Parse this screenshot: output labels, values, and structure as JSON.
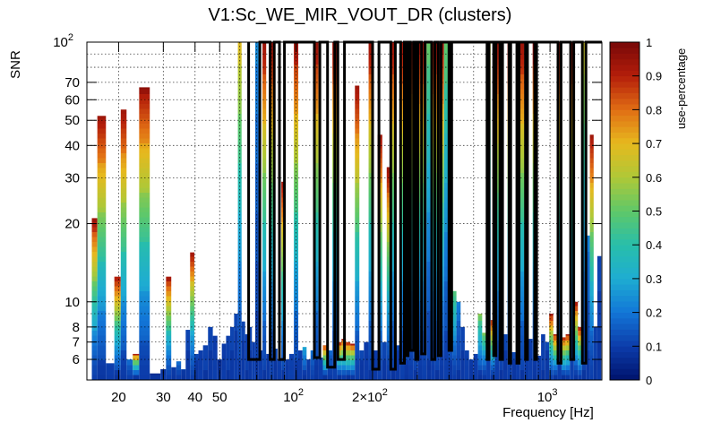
{
  "chart_data": {
    "type": "heatmap",
    "title": "V1:Sc_WE_MIR_VOUT_DR (clusters)",
    "xlabel": "Frequency [Hz]",
    "ylabel": "SNR",
    "zlabel": "use-percentage",
    "x_scale": "log",
    "y_scale": "log",
    "xlim": [
      15,
      1600
    ],
    "ylim": [
      5,
      100
    ],
    "zlim": [
      0,
      1
    ],
    "grid": true,
    "x_ticks": [
      {
        "value": 20,
        "label": "20"
      },
      {
        "value": 30,
        "label": "30"
      },
      {
        "value": 40,
        "label": "40"
      },
      {
        "value": 50,
        "label": "50"
      },
      {
        "value": 100,
        "label": "10",
        "exp": "2"
      },
      {
        "value": 200,
        "label": "2×10",
        "exp": "2"
      },
      {
        "value": 1000,
        "label": "10",
        "exp": "3"
      }
    ],
    "x_minor_ticks": [
      60,
      70,
      80,
      90,
      300,
      400,
      500,
      600,
      700,
      800,
      900
    ],
    "y_ticks": [
      {
        "value": 6,
        "label": "6"
      },
      {
        "value": 7,
        "label": "7"
      },
      {
        "value": 8,
        "label": "8"
      },
      {
        "value": 10,
        "label": "10"
      },
      {
        "value": 20,
        "label": "20"
      },
      {
        "value": 30,
        "label": "30"
      },
      {
        "value": 40,
        "label": "40"
      },
      {
        "value": 50,
        "label": "50"
      },
      {
        "value": 60,
        "label": "60"
      },
      {
        "value": 70,
        "label": "70"
      },
      {
        "value": 100,
        "label": "10",
        "exp": "2"
      }
    ],
    "colorbar_ticks": [
      0,
      0.1,
      0.2,
      0.3,
      0.4,
      0.5,
      0.6,
      0.7,
      0.8,
      0.9,
      1
    ],
    "colorbar_tick_labels": [
      "0",
      "0.1",
      "0.2",
      "0.3",
      "0.4",
      "0.5",
      "0.6",
      "0.7",
      "0.8",
      "0.9",
      "1"
    ],
    "columns": [
      {
        "f": 16.0,
        "top": 21,
        "tv": 0.95
      },
      {
        "f": 17.0,
        "top": 52,
        "tv": 0.95
      },
      {
        "f": 18.7,
        "top": 5.8,
        "tv": 0.1
      },
      {
        "f": 19.8,
        "top": 12.5,
        "tv": 0.95
      },
      {
        "f": 21.0,
        "top": 55,
        "tv": 0.95
      },
      {
        "f": 22.0,
        "top": 6.0,
        "tv": 0.2
      },
      {
        "f": 23.5,
        "top": 6.3,
        "tv": 0.95
      },
      {
        "f": 24.7,
        "top": 67,
        "tv": 0.95
      },
      {
        "f": 28.5,
        "top": 5.3,
        "tv": 0.05
      },
      {
        "f": 30.0,
        "top": 5.5,
        "tv": 0.05
      },
      {
        "f": 31.5,
        "top": 12.5,
        "tv": 0.95
      },
      {
        "f": 33.0,
        "top": 5.6,
        "tv": 0.1
      },
      {
        "f": 34.5,
        "top": 5.9,
        "tv": 0.2
      },
      {
        "f": 36.0,
        "top": 5.5,
        "tv": 0.1
      },
      {
        "f": 37.5,
        "top": 7.8,
        "tv": 0.1
      },
      {
        "f": 39.0,
        "top": 15.5,
        "tv": 0.95
      },
      {
        "f": 40.5,
        "top": 6.3,
        "tv": 0.1
      },
      {
        "f": 42.0,
        "top": 6.5,
        "tv": 0.1
      },
      {
        "f": 44.0,
        "top": 6.8,
        "tv": 0.1
      },
      {
        "f": 46.0,
        "top": 8.0,
        "tv": 0.1
      },
      {
        "f": 48.0,
        "top": 7.4,
        "tv": 0.1
      },
      {
        "f": 50.0,
        "top": 6.0,
        "tv": 0.05
      },
      {
        "f": 52.0,
        "top": 6.9,
        "tv": 0.1
      },
      {
        "f": 54.0,
        "top": 7.4,
        "tv": 0.1
      },
      {
        "f": 56.0,
        "top": 8.0,
        "tv": 0.1
      },
      {
        "f": 58.0,
        "top": 9.0,
        "tv": 0.1
      },
      {
        "f": 60.0,
        "top": 100,
        "tv": 0.68
      },
      {
        "f": 62.0,
        "top": 8.4,
        "tv": 0.1
      },
      {
        "f": 64.0,
        "top": 7.5,
        "tv": 0.1
      },
      {
        "f": 66.0,
        "top": 8.0,
        "tv": 0.1
      },
      {
        "f": 68.0,
        "top": 7.0,
        "tv": 0.1
      },
      {
        "f": 70.0,
        "top": 100,
        "tv": 0.22
      },
      {
        "f": 72.5,
        "top": 6.5,
        "tv": 0.1
      },
      {
        "f": 75.0,
        "top": 100,
        "tv": 0.95
      },
      {
        "f": 77.5,
        "top": 6.3,
        "tv": 0.1
      },
      {
        "f": 80.0,
        "top": 100,
        "tv": 0.95
      },
      {
        "f": 83.0,
        "top": 6.6,
        "tv": 0.1
      },
      {
        "f": 86.0,
        "top": 6.0,
        "tv": 0.1
      },
      {
        "f": 89.0,
        "top": 29,
        "tv": 0.95
      },
      {
        "f": 92.0,
        "top": 6.0,
        "tv": 0.1
      },
      {
        "f": 96.0,
        "top": 6.3,
        "tv": 0.1
      },
      {
        "f": 100,
        "top": 100,
        "tv": 0.95
      },
      {
        "f": 104,
        "top": 6.5,
        "tv": 0.1
      },
      {
        "f": 108,
        "top": 6.7,
        "tv": 0.3
      },
      {
        "f": 112,
        "top": 6.0,
        "tv": 0.1
      },
      {
        "f": 116,
        "top": 6.5,
        "tv": 0.2
      },
      {
        "f": 120,
        "top": 100,
        "tv": 0.95
      },
      {
        "f": 125,
        "top": 6.1,
        "tv": 0.1
      },
      {
        "f": 130,
        "top": 6.8,
        "tv": 0.95
      },
      {
        "f": 136,
        "top": 6.5,
        "tv": 0.2
      },
      {
        "f": 142,
        "top": 100,
        "tv": 0.95
      },
      {
        "f": 148,
        "top": 7.0,
        "tv": 0.95
      },
      {
        "f": 154,
        "top": 7.2,
        "tv": 0.95
      },
      {
        "f": 160,
        "top": 7.0,
        "tv": 0.95
      },
      {
        "f": 167,
        "top": 6.9,
        "tv": 0.95
      },
      {
        "f": 174,
        "top": 68,
        "tv": 0.95
      },
      {
        "f": 181,
        "top": 6.5,
        "tv": 0.1
      },
      {
        "f": 189,
        "top": 7.0,
        "tv": 0.1
      },
      {
        "f": 197,
        "top": 100,
        "tv": 0.95
      },
      {
        "f": 205,
        "top": 6.5,
        "tv": 0.1
      },
      {
        "f": 214,
        "top": 44,
        "tv": 0.95
      },
      {
        "f": 223,
        "top": 7.0,
        "tv": 0.1
      },
      {
        "f": 232,
        "top": 33,
        "tv": 0.95
      },
      {
        "f": 242,
        "top": 100,
        "tv": 0.95
      },
      {
        "f": 252,
        "top": 6.8,
        "tv": 0.1
      },
      {
        "f": 262,
        "top": 100,
        "tv": 0.95
      },
      {
        "f": 272,
        "top": 100,
        "tv": 0.95
      },
      {
        "f": 284,
        "top": 100,
        "tv": 0.95
      },
      {
        "f": 296,
        "top": 100,
        "tv": 0.95
      },
      {
        "f": 308,
        "top": 100,
        "tv": 0.95
      },
      {
        "f": 320,
        "top": 100,
        "tv": 0.95
      },
      {
        "f": 333,
        "top": 100,
        "tv": 0.5
      },
      {
        "f": 346,
        "top": 100,
        "tv": 0.95
      },
      {
        "f": 360,
        "top": 100,
        "tv": 0.95
      },
      {
        "f": 375,
        "top": 100,
        "tv": 0.95
      },
      {
        "f": 390,
        "top": 100,
        "tv": 0.5
      },
      {
        "f": 405,
        "top": 100,
        "tv": 0.95
      },
      {
        "f": 420,
        "top": 11,
        "tv": 0.5
      },
      {
        "f": 436,
        "top": 10,
        "tv": 0.2
      },
      {
        "f": 453,
        "top": 8.0,
        "tv": 0.1
      },
      {
        "f": 470,
        "top": 6.5,
        "tv": 0.1
      },
      {
        "f": 490,
        "top": 6.0,
        "tv": 0.1
      },
      {
        "f": 510,
        "top": 6.3,
        "tv": 0.1
      },
      {
        "f": 530,
        "top": 9.0,
        "tv": 0.55
      },
      {
        "f": 551,
        "top": 7.6,
        "tv": 0.55
      },
      {
        "f": 572,
        "top": 100,
        "tv": 0.65
      },
      {
        "f": 595,
        "top": 8.5,
        "tv": 0.95
      },
      {
        "f": 618,
        "top": 100,
        "tv": 0.95
      },
      {
        "f": 642,
        "top": 100,
        "tv": 0.6
      },
      {
        "f": 667,
        "top": 7.5,
        "tv": 0.1
      },
      {
        "f": 693,
        "top": 100,
        "tv": 0.95
      },
      {
        "f": 720,
        "top": 6.4,
        "tv": 0.1
      },
      {
        "f": 748,
        "top": 100,
        "tv": 0.95
      },
      {
        "f": 777,
        "top": 100,
        "tv": 0.95
      },
      {
        "f": 807,
        "top": 100,
        "tv": 0.95
      },
      {
        "f": 838,
        "top": 7.2,
        "tv": 0.1
      },
      {
        "f": 870,
        "top": 100,
        "tv": 0.95
      },
      {
        "f": 904,
        "top": 6.2,
        "tv": 0.1
      },
      {
        "f": 940,
        "top": 7.5,
        "tv": 0.1
      },
      {
        "f": 975,
        "top": 7.0,
        "tv": 0.1
      },
      {
        "f": 1010,
        "top": 9.0,
        "tv": 0.95
      },
      {
        "f": 1050,
        "top": 7.5,
        "tv": 0.95
      },
      {
        "f": 1090,
        "top": 100,
        "tv": 0.95
      },
      {
        "f": 1130,
        "top": 7.3,
        "tv": 0.95
      },
      {
        "f": 1175,
        "top": 7.5,
        "tv": 0.95
      },
      {
        "f": 1220,
        "top": 100,
        "tv": 0.95
      },
      {
        "f": 1265,
        "top": 10,
        "tv": 0.95
      },
      {
        "f": 1310,
        "top": 8.0,
        "tv": 0.95
      },
      {
        "f": 1360,
        "top": 100,
        "tv": 0.65
      },
      {
        "f": 1410,
        "top": 18,
        "tv": 0.2
      },
      {
        "f": 1460,
        "top": 44,
        "tv": 0.95
      },
      {
        "f": 1510,
        "top": 8.0,
        "tv": 0.1
      },
      {
        "f": 1560,
        "top": 15,
        "tv": 0.1
      }
    ],
    "outline": [
      [
        65,
        100
      ],
      [
        65,
        6
      ],
      [
        72,
        6
      ],
      [
        72,
        100
      ],
      [
        79,
        100
      ],
      [
        79,
        6
      ],
      [
        82,
        6
      ],
      [
        82,
        100
      ],
      [
        86,
        100
      ],
      [
        86,
        6
      ],
      [
        90,
        6
      ],
      [
        90,
        100
      ],
      [
        118,
        100
      ],
      [
        118,
        6.1
      ],
      [
        124,
        6.1
      ],
      [
        124,
        100
      ],
      [
        133,
        100
      ],
      [
        133,
        5.6
      ],
      [
        142,
        5.6
      ],
      [
        142,
        100
      ],
      [
        146,
        100
      ],
      [
        146,
        6.0
      ],
      [
        155,
        6.0
      ],
      [
        155,
        100
      ],
      [
        200,
        100
      ],
      [
        200,
        5.5
      ],
      [
        212,
        5.5
      ],
      [
        212,
        100
      ],
      [
        236,
        100
      ],
      [
        236,
        5.5
      ],
      [
        246,
        5.5
      ],
      [
        246,
        100
      ],
      [
        258,
        100
      ],
      [
        258,
        5.8
      ],
      [
        267,
        5.8
      ],
      [
        267,
        100
      ],
      [
        270,
        100
      ],
      [
        270,
        6.2
      ],
      [
        276,
        6.2
      ],
      [
        276,
        100
      ],
      [
        282,
        100
      ],
      [
        282,
        6.5
      ],
      [
        290,
        6.5
      ],
      [
        290,
        100
      ],
      [
        296,
        100
      ],
      [
        296,
        6.0
      ],
      [
        302,
        6.0
      ],
      [
        302,
        100
      ],
      [
        312,
        100
      ],
      [
        312,
        6.3
      ],
      [
        322,
        6.3
      ],
      [
        322,
        100
      ],
      [
        342,
        100
      ],
      [
        342,
        6.0
      ],
      [
        352,
        6.0
      ],
      [
        352,
        100
      ],
      [
        363,
        100
      ],
      [
        363,
        6.2
      ],
      [
        372,
        6.2
      ],
      [
        372,
        100
      ],
      [
        400,
        100
      ],
      [
        400,
        6.5
      ],
      [
        410,
        6.5
      ],
      [
        410,
        100
      ],
      [
        565,
        100
      ],
      [
        565,
        6.0
      ],
      [
        575,
        6.0
      ],
      [
        575,
        100
      ],
      [
        600,
        100
      ],
      [
        600,
        6.2
      ],
      [
        612,
        6.2
      ],
      [
        612,
        100
      ],
      [
        635,
        100
      ],
      [
        635,
        6.0
      ],
      [
        650,
        6.0
      ],
      [
        650,
        100
      ],
      [
        690,
        100
      ],
      [
        690,
        5.8
      ],
      [
        700,
        5.8
      ],
      [
        700,
        100
      ],
      [
        740,
        100
      ],
      [
        740,
        5.8
      ],
      [
        755,
        5.8
      ],
      [
        755,
        100
      ],
      [
        800,
        100
      ],
      [
        800,
        6.0
      ],
      [
        815,
        6.0
      ],
      [
        815,
        100
      ],
      [
        870,
        100
      ],
      [
        870,
        6.0
      ],
      [
        885,
        6.0
      ],
      [
        885,
        100
      ],
      [
        1075,
        100
      ],
      [
        1075,
        5.8
      ],
      [
        1105,
        5.8
      ],
      [
        1105,
        100
      ],
      [
        1205,
        100
      ],
      [
        1205,
        6.0
      ],
      [
        1240,
        6.0
      ],
      [
        1240,
        100
      ],
      [
        1340,
        100
      ],
      [
        1340,
        5.8
      ],
      [
        1385,
        5.8
      ],
      [
        1385,
        100
      ],
      [
        1600,
        100
      ]
    ]
  }
}
